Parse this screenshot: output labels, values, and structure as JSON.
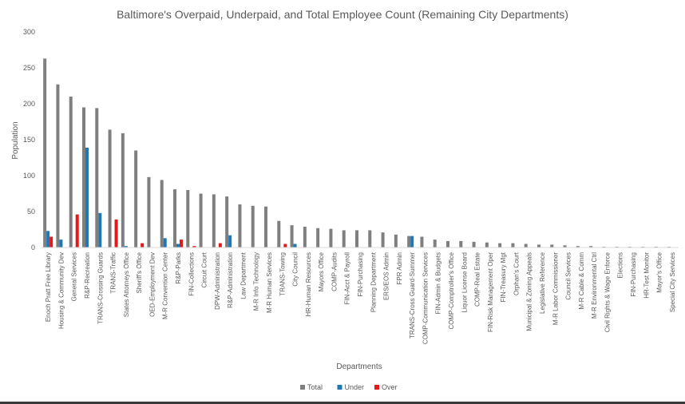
{
  "chart_data": {
    "type": "bar",
    "title": "Baltimore's Overpaid, Underpaid, and Total Employee Count (Remaining City Departments)",
    "xlabel": "Departments",
    "ylabel": "Population",
    "ylim": [
      0,
      300
    ],
    "yticks": [
      0,
      50,
      100,
      150,
      200,
      250,
      300
    ],
    "grid": false,
    "legend_position": "bottom",
    "categories": [
      "Enoch Pratt Free Library",
      "Housing & Community Dev",
      "General Services",
      "R&P-Recreation",
      "TRANS-Crossing Guards",
      "TRANS-Traffic",
      "States Attorneys Office",
      "Sheriff's Office",
      "OED-Employment Dev",
      "M-R Convention Center",
      "R&P-Parks",
      "FIN-Collections",
      "Circuit Court",
      "DPW-Administration",
      "R&P-Administration",
      "Law Department",
      "M-R Info Technology",
      "M-R Human Services",
      "TRANS-Towing",
      "City Council",
      "HR-Human Resources",
      "Mayors Office",
      "COMP-Audits",
      "FIN-Acct & Payroll",
      "FIN-Purchasing",
      "Planning Department",
      "ERS/EOS Admin",
      "FPR Admin",
      "TRANS-Cross Guard-Summer",
      "COMP-Communication Services",
      "FIN-Admin & Budgets",
      "COMP-Comptroller's Office",
      "Liquor License Board",
      "COMP-Real Estate",
      "FIN-Risk Management Oper",
      "FIN-Treasury Mgt",
      "Orphan's Court",
      "Municipal & Zoning Appeals",
      "Legislative Reference",
      "M-R Labor Commissioner",
      "Council Services",
      "M-R Cable & Comm",
      "M-R Environmental Ctrl",
      "Civil Rights & Wage Enforce",
      "Elections",
      "FIN-Purchasing",
      "HR-Test Monitor",
      "Mayor's Office",
      "Special City Services"
    ],
    "series": [
      {
        "name": "Total",
        "color": "#7f7f7f",
        "values": [
          263,
          227,
          210,
          195,
          194,
          164,
          159,
          135,
          98,
          94,
          81,
          80,
          75,
          74,
          71,
          60,
          58,
          57,
          37,
          31,
          29,
          27,
          26,
          24,
          24,
          24,
          21,
          18,
          16,
          15,
          11,
          9,
          9,
          8,
          7,
          6,
          6,
          5,
          4,
          4,
          3,
          2,
          2,
          1,
          1,
          1,
          1,
          1,
          1
        ]
      },
      {
        "name": "Under",
        "color": "#1f77b4",
        "values": [
          23,
          11,
          0,
          139,
          48,
          0,
          2,
          0,
          0,
          13,
          5,
          0,
          0,
          0,
          17,
          0,
          0,
          0,
          0,
          5,
          0,
          0,
          0,
          0,
          0,
          0,
          0,
          0,
          16,
          0,
          0,
          0,
          0,
          0,
          0,
          0,
          0,
          0,
          0,
          0,
          0,
          0,
          0,
          0,
          0,
          0,
          0,
          0,
          0
        ]
      },
      {
        "name": "Over",
        "color": "#e31a1c",
        "values": [
          15,
          0,
          46,
          0,
          0,
          39,
          0,
          6,
          0,
          0,
          11,
          2,
          0,
          6,
          0,
          0,
          0,
          0,
          5,
          0,
          0,
          0,
          0,
          0,
          0,
          0,
          0,
          0,
          0,
          0,
          0,
          0,
          0,
          0,
          0,
          0,
          0,
          0,
          0,
          0,
          0,
          0,
          0,
          0,
          0,
          0,
          0,
          0,
          0
        ]
      }
    ]
  }
}
